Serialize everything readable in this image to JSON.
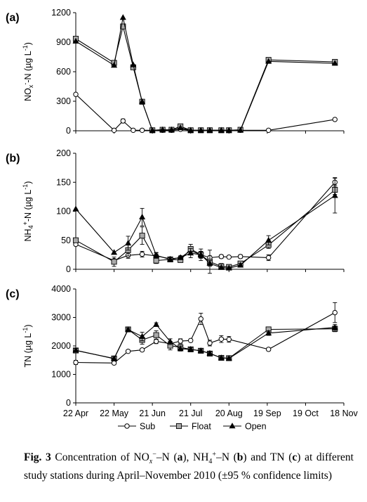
{
  "chart_data": [
    {
      "type": "line",
      "panel_label": "(a)",
      "ylabel_parts": [
        "NO",
        "x",
        "-",
        "-N (µg L",
        "-1",
        ")"
      ],
      "ylim": [
        0,
        1200
      ],
      "yticks": [
        "0",
        "300",
        "600",
        "900",
        "1200"
      ],
      "x_dates": [
        "2010-04-22",
        "2010-05-22",
        "2010-05-29",
        "2010-06-06",
        "2010-06-13",
        "2010-06-21",
        "2010-06-29",
        "2010-07-06",
        "2010-07-13",
        "2010-07-21",
        "2010-07-29",
        "2010-08-05",
        "2010-08-14",
        "2010-08-20",
        "2010-08-29",
        "2010-09-20",
        "2010-11-11"
      ],
      "series": [
        {
          "name": "Sub",
          "marker": "circle-open",
          "values": [
            370,
            5,
            100,
            5,
            5,
            5,
            5,
            5,
            15,
            5,
            5,
            5,
            5,
            5,
            5,
            5,
            115
          ],
          "errors": [
            0,
            0,
            20,
            0,
            0,
            0,
            0,
            0,
            10,
            0,
            0,
            0,
            0,
            0,
            0,
            0,
            0
          ]
        },
        {
          "name": "Float",
          "marker": "square-gray",
          "values": [
            935,
            690,
            1060,
            645,
            295,
            5,
            10,
            10,
            45,
            5,
            5,
            5,
            5,
            5,
            10,
            720,
            700
          ],
          "errors": [
            0,
            0,
            0,
            0,
            0,
            0,
            0,
            0,
            15,
            0,
            0,
            0,
            0,
            0,
            0,
            0,
            0
          ]
        },
        {
          "name": "Open",
          "marker": "triangle-filled",
          "values": [
            910,
            665,
            1150,
            670,
            295,
            5,
            10,
            10,
            30,
            5,
            5,
            5,
            5,
            5,
            5,
            705,
            685
          ],
          "errors": [
            0,
            0,
            0,
            0,
            0,
            0,
            0,
            0,
            0,
            0,
            0,
            0,
            0,
            0,
            0,
            0,
            0
          ]
        }
      ]
    },
    {
      "type": "line",
      "panel_label": "(b)",
      "ylabel_parts": [
        "NH",
        "4",
        "+",
        "-N (µg L",
        "-1",
        ")"
      ],
      "ylim": [
        0,
        200
      ],
      "yticks": [
        "0",
        "50",
        "100",
        "150",
        "200"
      ],
      "x_dates": [
        "2010-04-22",
        "2010-05-22",
        "2010-06-02",
        "2010-06-13",
        "2010-06-24",
        "2010-07-05",
        "2010-07-13",
        "2010-07-21",
        "2010-07-29",
        "2010-08-05",
        "2010-08-14",
        "2010-08-20",
        "2010-08-29",
        "2010-09-20",
        "2010-11-11"
      ],
      "series": [
        {
          "name": "Sub",
          "marker": "circle-open",
          "values": [
            43,
            15,
            24,
            26,
            23,
            18,
            20,
            32,
            25,
            20,
            22,
            21,
            22,
            20,
            150
          ],
          "errors": [
            0,
            0,
            5,
            5,
            5,
            3,
            3,
            5,
            5,
            3,
            3,
            2,
            3,
            5,
            8
          ]
        },
        {
          "name": "Float",
          "marker": "square-gray",
          "values": [
            50,
            13,
            33,
            58,
            15,
            17,
            16,
            35,
            25,
            13,
            5,
            4,
            10,
            42,
            137
          ],
          "errors": [
            0,
            8,
            10,
            15,
            5,
            4,
            4,
            8,
            10,
            20,
            5,
            3,
            4,
            6,
            8
          ]
        },
        {
          "name": "Open",
          "marker": "triangle-filled",
          "values": [
            104,
            29,
            45,
            90,
            24,
            17,
            20,
            28,
            25,
            10,
            3,
            2,
            7,
            50,
            127
          ],
          "errors": [
            0,
            0,
            12,
            15,
            5,
            3,
            3,
            8,
            6,
            5,
            2,
            2,
            3,
            8,
            30
          ]
        }
      ]
    },
    {
      "type": "line",
      "panel_label": "(c)",
      "ylabel_parts": [
        "TN (µg L",
        "-1",
        ")"
      ],
      "ylim": [
        0,
        4000
      ],
      "yticks": [
        "0",
        "1000",
        "2000",
        "3000",
        "4000"
      ],
      "xticks": [
        "22 Apr",
        "22 May",
        "21 Jun",
        "21 Jul",
        "20 Aug",
        "19 Sep",
        "19 Oct",
        "18 Nov"
      ],
      "x_dates": [
        "2010-04-22",
        "2010-05-22",
        "2010-06-02",
        "2010-06-13",
        "2010-06-24",
        "2010-07-05",
        "2010-07-13",
        "2010-07-21",
        "2010-07-29",
        "2010-08-05",
        "2010-08-14",
        "2010-08-20",
        "2010-09-20",
        "2010-11-11"
      ],
      "series": [
        {
          "name": "Sub",
          "marker": "circle-open",
          "values": [
            1420,
            1400,
            1810,
            1860,
            2160,
            2080,
            2170,
            2190,
            2950,
            2100,
            2240,
            2230,
            1880,
            3170
          ],
          "errors": [
            70,
            60,
            50,
            50,
            80,
            80,
            80,
            50,
            200,
            100,
            120,
            100,
            50,
            350
          ]
        },
        {
          "name": "Float",
          "marker": "square-gray",
          "values": [
            1840,
            1560,
            2580,
            2210,
            2380,
            2010,
            1950,
            1880,
            1830,
            1730,
            1580,
            1570,
            2580,
            2600
          ],
          "errors": [
            60,
            80,
            80,
            150,
            150,
            150,
            100,
            60,
            60,
            50,
            50,
            50,
            80,
            100
          ]
        },
        {
          "name": "Open",
          "marker": "triangle-filled",
          "values": [
            1850,
            1550,
            2570,
            2330,
            2750,
            2150,
            1900,
            1880,
            1830,
            1740,
            1580,
            1560,
            2450,
            2650
          ],
          "errors": [
            60,
            60,
            60,
            150,
            60,
            100,
            80,
            60,
            60,
            60,
            50,
            50,
            80,
            100
          ]
        }
      ]
    }
  ],
  "legend": {
    "placement": "bottom",
    "items": [
      {
        "name": "Sub",
        "marker": "circle-open"
      },
      {
        "name": "Float",
        "marker": "square-gray"
      },
      {
        "name": "Open",
        "marker": "triangle-filled"
      }
    ]
  },
  "colors": {
    "line": "#000000",
    "float_fill": "#a9a9a9",
    "open_fill": "#000000",
    "sub_fill": "#ffffff"
  },
  "caption": {
    "fig_label": "Fig. 3",
    "text_html": " Concentration of NO<sub style=\"font-size:10px\"><i>x</i></sub><sup style=\"font-size:10px\">−</sup>–N (<b>a</b>), NH<sub style=\"font-size:10px\">4</sub><sup style=\"font-size:10px\">+</sup>–N (<b>b</b>) and TN (<b>c</b>) at different study stations during April–November 2010 (±95 % confidence limits)"
  }
}
